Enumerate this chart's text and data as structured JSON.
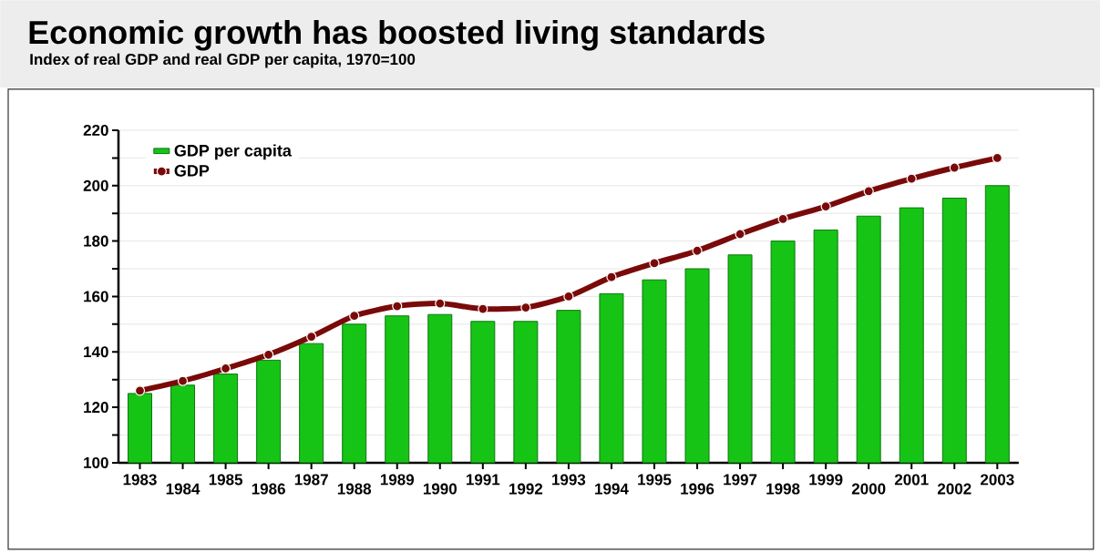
{
  "chart_data": {
    "type": "bar",
    "title": "Economic growth has boosted living standards",
    "subtitle": "Index of real GDP and real GDP per capita, 1970=100",
    "categories": [
      "1983",
      "1984",
      "1985",
      "1986",
      "1987",
      "1988",
      "1989",
      "1990",
      "1991",
      "1992",
      "1993",
      "1994",
      "1995",
      "1996",
      "1997",
      "1998",
      "1999",
      "2000",
      "2001",
      "2002",
      "2003"
    ],
    "series": [
      {
        "name": "GDP per capita",
        "color": "#16c416",
        "values": [
          125,
          128,
          132,
          137,
          143,
          150,
          153,
          153.5,
          151,
          151,
          155,
          161,
          166,
          170,
          175,
          180,
          184,
          189,
          192,
          195.5,
          200
        ]
      },
      {
        "name": "GDP",
        "type": "line",
        "color": "#7a0a0a",
        "marker": "circle",
        "values": [
          126,
          129.5,
          134,
          139,
          145.5,
          153,
          156.5,
          157.5,
          155.5,
          156,
          160,
          167,
          172,
          176.5,
          182.5,
          188,
          192.5,
          198,
          202.5,
          206.5,
          210
        ]
      }
    ],
    "ylim": [
      100,
      220
    ],
    "yticks": [
      100,
      {
        "value": 110,
        "label": null
      },
      120,
      {
        "value": 130,
        "label": null
      },
      140,
      {
        "value": 150,
        "label": null
      },
      160,
      {
        "value": 170,
        "label": null
      },
      180,
      {
        "value": 190,
        "label": null
      },
      200,
      {
        "value": 210,
        "label": null
      },
      220
    ],
    "grid": "y",
    "legend": "top left"
  }
}
